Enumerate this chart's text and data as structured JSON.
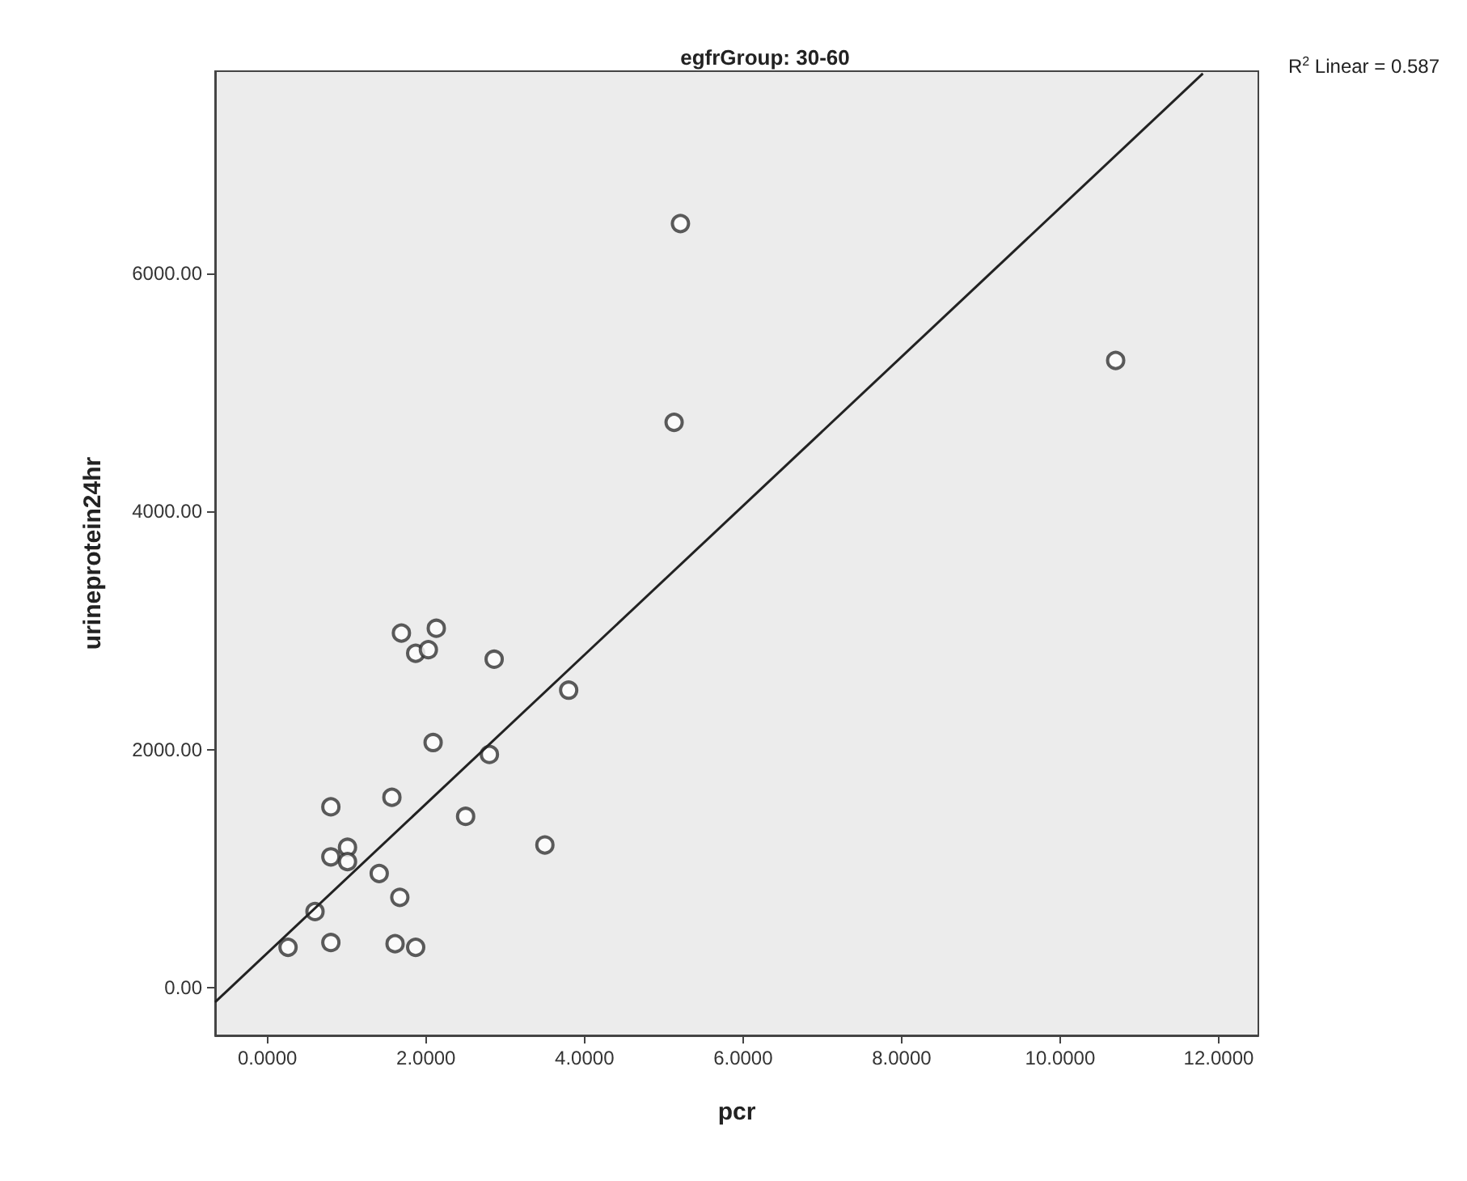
{
  "chart_data": {
    "type": "scatter",
    "title": "egfrGroup: 30-60",
    "xlabel": "pcr",
    "ylabel": "urineprotein24hr",
    "xlim": [
      -0.66,
      12.5
    ],
    "ylim": [
      -400,
      7700
    ],
    "xticks": [
      {
        "value": 0,
        "label": "0.0000"
      },
      {
        "value": 2,
        "label": "2.0000"
      },
      {
        "value": 4,
        "label": "4.0000"
      },
      {
        "value": 6,
        "label": "6.0000"
      },
      {
        "value": 8,
        "label": "8.0000"
      },
      {
        "value": 10,
        "label": "10.0000"
      },
      {
        "value": 12,
        "label": "12.0000"
      }
    ],
    "yticks": [
      {
        "value": 0,
        "label": "0.00"
      },
      {
        "value": 2000,
        "label": "2000.00"
      },
      {
        "value": 4000,
        "label": "4000.00"
      },
      {
        "value": 6000,
        "label": "6000.00"
      }
    ],
    "grid": false,
    "marker": "circle",
    "annotations": [
      "R$^{2}$ Linear = 0.587"
    ],
    "series": [
      {
        "color": "#333333",
        "x": [
          1.69,
          2.13,
          1.87,
          2.03,
          2.86,
          3.8,
          2.09,
          2.8,
          1.57,
          0.8,
          2.5,
          3.5,
          1.01,
          0.8,
          1.01,
          1.41,
          1.67,
          0.6,
          0.26,
          0.8,
          1.61,
          1.87,
          5.21,
          5.13,
          10.7
        ],
        "values": [
          2980,
          3020,
          2810,
          2840,
          2760,
          2500,
          2060,
          1960,
          1600,
          1520,
          1440,
          1200,
          1180,
          1100,
          1060,
          960,
          760,
          640,
          340,
          380,
          370,
          340,
          6420,
          4750,
          5270
        ]
      },
      {
        "type": "line",
        "color": "#222222",
        "marker": "none",
        "line_style": "solid",
        "x": [
          -0.66,
          11.8
        ],
        "values": [
          -120,
          7680
        ]
      }
    ]
  }
}
